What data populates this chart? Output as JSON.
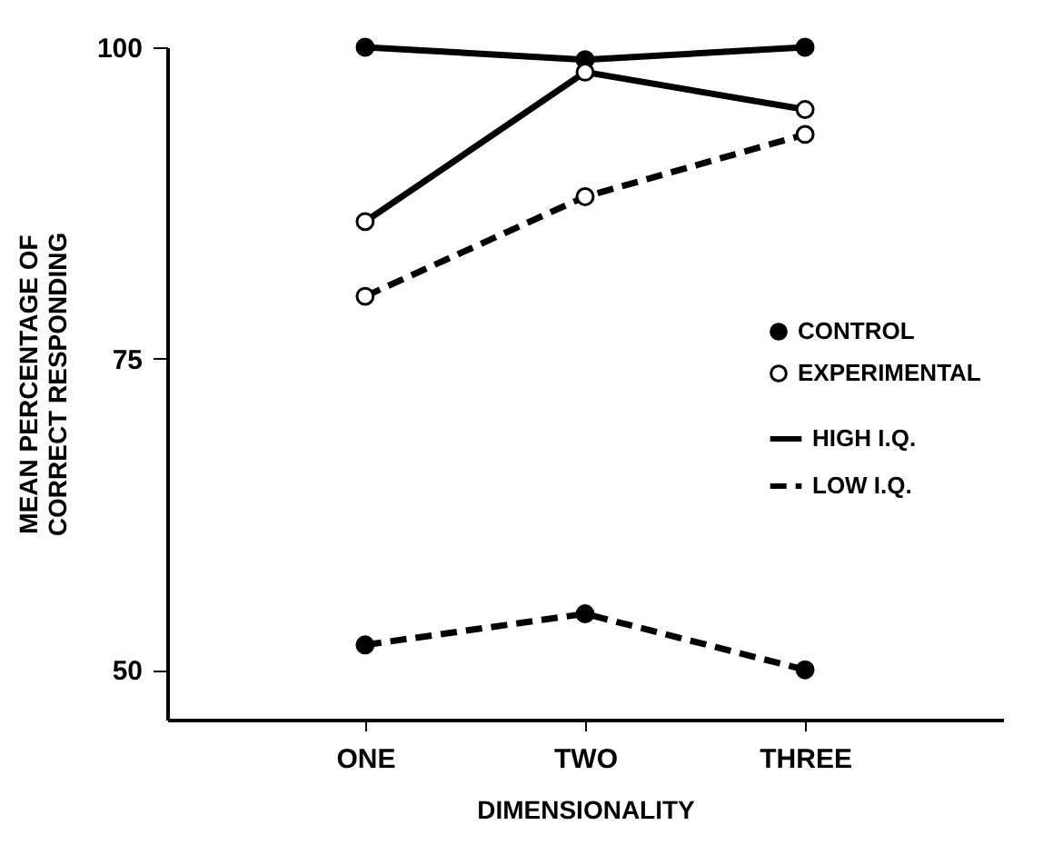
{
  "chart_data": {
    "type": "line",
    "xlabel": "DIMENSIONALITY",
    "ylabel": "MEAN PERCENTAGE OF\nCORRECT RESPONDING",
    "categories": [
      "ONE",
      "TWO",
      "THREE"
    ],
    "series": [
      {
        "name": "CONTROL",
        "color": "#000000",
        "line_style": "solid",
        "values": [
          100,
          99,
          100
        ]
      },
      {
        "name": "EXPERIMENTAL",
        "color": "#ffffff",
        "line_style": "solid",
        "values": [
          86,
          98,
          95
        ]
      },
      {
        "color": "#ffffff",
        "line_style": "dashed",
        "values": [
          80,
          88,
          93
        ]
      },
      {
        "color": "#000000",
        "line_style": "dashed",
        "values": [
          52,
          54.5,
          50
        ]
      }
    ],
    "annotations": [
      "HIGH I.Q.",
      "LOW I.Q."
    ],
    "marker": "circle",
    "ylim": [
      46,
      100
    ],
    "yticks": [
      50,
      75,
      100
    ],
    "grid": false,
    "legend": "right"
  }
}
